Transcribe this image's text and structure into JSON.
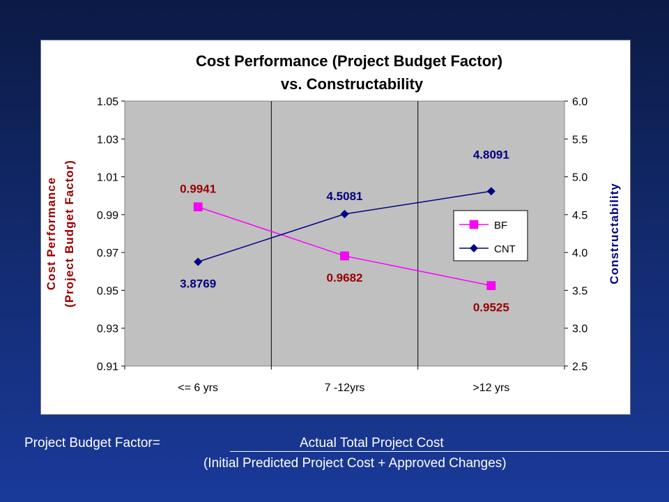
{
  "chart_data": {
    "type": "line",
    "title_line1": "Cost Performance (Project Budget Factor)",
    "title_line2": "vs. Constructability",
    "categories": [
      "<= 6 yrs",
      "7 -12yrs",
      ">12 yrs"
    ],
    "y_left": {
      "label_line1": "Cost Performance",
      "label_line2": "(Project Budget Factor)",
      "ticks": [
        "1.05",
        "1.03",
        "1.01",
        "0.99",
        "0.97",
        "0.95",
        "0.93",
        "0.91"
      ],
      "ylim": [
        0.91,
        1.05
      ]
    },
    "y_right": {
      "label": "Constructability",
      "ticks": [
        "6.0",
        "5.5",
        "5.0",
        "4.5",
        "4.0",
        "3.5",
        "3.0",
        "2.5"
      ],
      "ylim": [
        2.5,
        6.0
      ]
    },
    "series": [
      {
        "name": "BF",
        "axis": "left",
        "values": [
          0.9941,
          0.9682,
          0.9525
        ],
        "labels": [
          "0.9941",
          "0.9682",
          "0.9525"
        ],
        "color": "#ff00ff",
        "label_color": "#990000",
        "marker": "square"
      },
      {
        "name": "CNT",
        "axis": "right",
        "values": [
          3.8769,
          4.5081,
          4.8091
        ],
        "labels": [
          "3.8769",
          "4.5081",
          "4.8091"
        ],
        "color": "#000080",
        "label_color": "#000080",
        "marker": "diamond"
      }
    ],
    "grid": "vertical",
    "legend_position": "right",
    "plot_background": "#c0c0c0"
  },
  "footer": {
    "label": "Project Budget Factor=",
    "numerator": "Actual Total Project Cost",
    "denominator": "(Initial Predicted Project Cost + Approved Changes)"
  }
}
